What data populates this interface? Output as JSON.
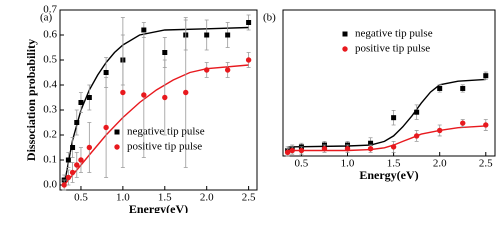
{
  "chart_data": [
    {
      "type": "scatter",
      "panel_label": "(a)",
      "xlabel": "Energy(eV)",
      "ylabel": "Dissociation probability",
      "xlim": [
        0.25,
        2.6
      ],
      "ylim": [
        -0.02,
        0.7
      ],
      "xticks": [
        {
          "value": 0.5,
          "label": "0.5"
        },
        {
          "value": 1.0,
          "label": "1.0"
        },
        {
          "value": 1.5,
          "label": "1.5"
        },
        {
          "value": 2.0,
          "label": "2.0"
        },
        {
          "value": 2.5,
          "label": "2.5"
        }
      ],
      "yticks": [
        {
          "value": 0,
          "label": "0.0"
        },
        0.1,
        0.2,
        0.3,
        0.4,
        0.5,
        0.6,
        0.7
      ],
      "legend": "lower right",
      "x": [
        0.3,
        0.35,
        0.4,
        0.45,
        0.5,
        0.6,
        0.8,
        1.0,
        1.25,
        1.5,
        1.75,
        2.0,
        2.25,
        2.5
      ],
      "series": [
        {
          "name": "negative tip pulse",
          "color": "#000000",
          "marker": "square",
          "values": [
            0.02,
            0.1,
            0.15,
            0.25,
            0.33,
            0.35,
            0.45,
            0.5,
            0.62,
            0.53,
            0.6,
            0.6,
            0.6,
            0.65
          ],
          "errors": [
            0.02,
            0.03,
            0.04,
            0.05,
            0.04,
            0.05,
            0.06,
            0.1,
            0.03,
            0.06,
            0.06,
            0.06,
            0.05,
            0.03
          ],
          "fit": {
            "x": [
              0.3,
              0.4,
              0.5,
              0.6,
              0.7,
              0.8,
              0.9,
              1.0,
              1.2,
              1.5,
              2.0,
              2.5
            ],
            "values": [
              0.0,
              0.18,
              0.3,
              0.38,
              0.44,
              0.49,
              0.53,
              0.56,
              0.6,
              0.62,
              0.625,
              0.63
            ]
          }
        },
        {
          "name": "positive tip pulse",
          "color": "#e8191e",
          "marker": "circle",
          "values": [
            0.0,
            0.03,
            0.05,
            0.08,
            0.1,
            0.15,
            0.23,
            0.37,
            0.36,
            0.35,
            0.37,
            0.46,
            0.46,
            0.5
          ],
          "errors": [
            0.02,
            0.03,
            0.04,
            0.05,
            0.05,
            0.1,
            0.2,
            0.3,
            0.25,
            0.15,
            0.3,
            0.03,
            0.03,
            0.03
          ],
          "fit": {
            "x": [
              0.3,
              0.4,
              0.5,
              0.6,
              0.8,
              1.0,
              1.2,
              1.4,
              1.6,
              1.8,
              2.0,
              2.5
            ],
            "values": [
              0.0,
              0.04,
              0.08,
              0.12,
              0.2,
              0.27,
              0.33,
              0.38,
              0.42,
              0.45,
              0.465,
              0.48
            ]
          }
        }
      ]
    },
    {
      "type": "scatter",
      "panel_label": "(b)",
      "xlabel": "Energy(eV)",
      "xlim": [
        0.3,
        2.6
      ],
      "ylim": [
        0,
        0.8
      ],
      "xticks": [
        {
          "value": 0.5,
          "label": "0.5"
        },
        {
          "value": 1.0,
          "label": "1.0"
        },
        {
          "value": 1.5,
          "label": "1.5"
        },
        {
          "value": 2.0,
          "label": "2.0"
        },
        {
          "value": 2.5,
          "label": "2.5"
        }
      ],
      "legend": "upper right",
      "x": [
        0.35,
        0.4,
        0.5,
        0.75,
        1.0,
        1.25,
        1.5,
        1.75,
        2.0,
        2.25,
        2.5
      ],
      "series": [
        {
          "name": "negative tip pulse",
          "color": "#000000",
          "marker": "square",
          "values": [
            0.03,
            0.04,
            0.05,
            0.06,
            0.06,
            0.07,
            0.21,
            0.24,
            0.37,
            0.37,
            0.44
          ],
          "errors": [
            0.02,
            0.02,
            0.02,
            0.02,
            0.02,
            0.03,
            0.04,
            0.04,
            0.02,
            0.02,
            0.02
          ],
          "fit": {
            "x": [
              0.35,
              1.0,
              1.25,
              1.4,
              1.5,
              1.6,
              1.7,
              1.8,
              1.9,
              2.0,
              2.2,
              2.5
            ],
            "values": [
              0.05,
              0.055,
              0.06,
              0.08,
              0.11,
              0.16,
              0.22,
              0.29,
              0.35,
              0.39,
              0.41,
              0.42
            ]
          }
        },
        {
          "name": "positive tip pulse",
          "color": "#e8191e",
          "marker": "circle",
          "values": [
            0.02,
            0.03,
            0.03,
            0.04,
            0.04,
            0.04,
            0.05,
            0.11,
            0.14,
            0.18,
            0.17
          ],
          "errors": [
            0.02,
            0.02,
            0.02,
            0.02,
            0.02,
            0.02,
            0.03,
            0.03,
            0.03,
            0.02,
            0.03
          ],
          "fit": {
            "x": [
              0.35,
              1.0,
              1.25,
              1.4,
              1.5,
              1.6,
              1.7,
              1.8,
              2.0,
              2.2,
              2.5
            ],
            "values": [
              0.03,
              0.03,
              0.035,
              0.045,
              0.06,
              0.08,
              0.1,
              0.12,
              0.14,
              0.155,
              0.165
            ]
          }
        }
      ]
    }
  ]
}
